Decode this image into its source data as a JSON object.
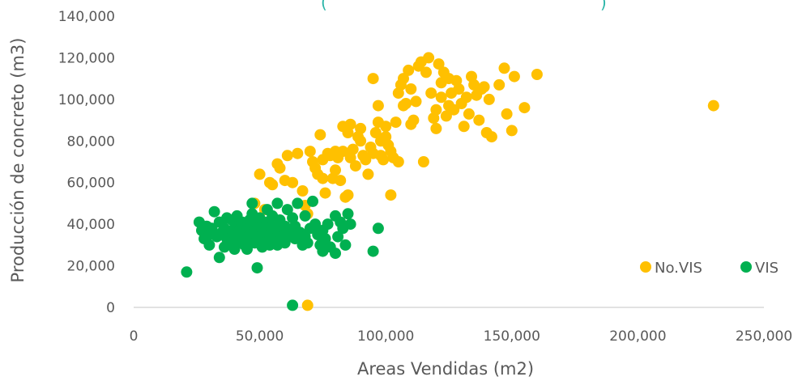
{
  "chart_data": {
    "type": "scatter",
    "title": "(",
    "title_suffix": ")",
    "xlabel": "Areas Vendidas (m2)",
    "ylabel": "Producción de concreto (m3)",
    "xlim": [
      0,
      250000
    ],
    "ylim": [
      0,
      140000
    ],
    "x_ticks": [
      "0",
      "50,000",
      "100,000",
      "150,000",
      "200,000",
      "250,000"
    ],
    "y_ticks": [
      "0",
      "20,000",
      "40,000",
      "60,000",
      "80,000",
      "100,000",
      "120,000",
      "140,000"
    ],
    "grid": false,
    "legend_position": "bottom-right",
    "series": [
      {
        "name": "No.VIS",
        "color": "#FFC000",
        "points": [
          [
            69000,
            1000
          ],
          [
            48000,
            50000
          ],
          [
            52000,
            47000
          ],
          [
            50000,
            64000
          ],
          [
            54000,
            60000
          ],
          [
            55000,
            59000
          ],
          [
            57000,
            69000
          ],
          [
            58000,
            67000
          ],
          [
            60000,
            61000
          ],
          [
            61000,
            73000
          ],
          [
            63000,
            60000
          ],
          [
            65000,
            74000
          ],
          [
            67000,
            56000
          ],
          [
            68000,
            49000
          ],
          [
            69000,
            45000
          ],
          [
            70000,
            75000
          ],
          [
            71000,
            70000
          ],
          [
            72000,
            67000
          ],
          [
            73000,
            64000
          ],
          [
            74000,
            83000
          ],
          [
            75000,
            71000
          ],
          [
            75000,
            62000
          ],
          [
            76000,
            55000
          ],
          [
            77000,
            74000
          ],
          [
            78000,
            73000
          ],
          [
            79000,
            62000
          ],
          [
            80000,
            66000
          ],
          [
            80000,
            75000
          ],
          [
            81000,
            72000
          ],
          [
            82000,
            61000
          ],
          [
            83000,
            87000
          ],
          [
            83000,
            75000
          ],
          [
            84000,
            53000
          ],
          [
            85000,
            54000
          ],
          [
            85000,
            84000
          ],
          [
            86000,
            88000
          ],
          [
            86000,
            72000
          ],
          [
            87000,
            76000
          ],
          [
            88000,
            68000
          ],
          [
            89000,
            82000
          ],
          [
            90000,
            86000
          ],
          [
            90000,
            80000
          ],
          [
            91000,
            73000
          ],
          [
            92000,
            71000
          ],
          [
            93000,
            64000
          ],
          [
            94000,
            77000
          ],
          [
            95000,
            74000
          ],
          [
            95000,
            110000
          ],
          [
            96000,
            84000
          ],
          [
            97000,
            97000
          ],
          [
            97000,
            89000
          ],
          [
            98000,
            80000
          ],
          [
            98000,
            73000
          ],
          [
            99000,
            71000
          ],
          [
            100000,
            82000
          ],
          [
            100000,
            87000
          ],
          [
            101000,
            78000
          ],
          [
            102000,
            75000
          ],
          [
            102000,
            54000
          ],
          [
            103000,
            72000
          ],
          [
            104000,
            89000
          ],
          [
            105000,
            70000
          ],
          [
            105000,
            103000
          ],
          [
            106000,
            107000
          ],
          [
            107000,
            110000
          ],
          [
            107000,
            97000
          ],
          [
            108000,
            98000
          ],
          [
            109000,
            114000
          ],
          [
            110000,
            105000
          ],
          [
            110000,
            88000
          ],
          [
            111000,
            90000
          ],
          [
            112000,
            99000
          ],
          [
            113000,
            116000
          ],
          [
            114000,
            118000
          ],
          [
            115000,
            70000
          ],
          [
            116000,
            113000
          ],
          [
            117000,
            120000
          ],
          [
            118000,
            103000
          ],
          [
            119000,
            91000
          ],
          [
            120000,
            95000
          ],
          [
            120000,
            86000
          ],
          [
            121000,
            117000
          ],
          [
            122000,
            108000
          ],
          [
            122000,
            101000
          ],
          [
            123000,
            113000
          ],
          [
            124000,
            92000
          ],
          [
            125000,
            110000
          ],
          [
            125000,
            97000
          ],
          [
            126000,
            103000
          ],
          [
            127000,
            95000
          ],
          [
            128000,
            109000
          ],
          [
            129000,
            105000
          ],
          [
            130000,
            98000
          ],
          [
            131000,
            87000
          ],
          [
            132000,
            101000
          ],
          [
            133000,
            93000
          ],
          [
            134000,
            111000
          ],
          [
            135000,
            107000
          ],
          [
            136000,
            102000
          ],
          [
            137000,
            90000
          ],
          [
            138000,
            105000
          ],
          [
            139000,
            106000
          ],
          [
            140000,
            84000
          ],
          [
            141000,
            100000
          ],
          [
            142000,
            82000
          ],
          [
            145000,
            107000
          ],
          [
            147000,
            115000
          ],
          [
            148000,
            93000
          ],
          [
            150000,
            85000
          ],
          [
            151000,
            111000
          ],
          [
            155000,
            96000
          ],
          [
            160000,
            112000
          ],
          [
            230000,
            97000
          ]
        ]
      },
      {
        "name": "VIS",
        "color": "#00B050",
        "points": [
          [
            21000,
            17000
          ],
          [
            26000,
            41000
          ],
          [
            27000,
            37000
          ],
          [
            28000,
            33000
          ],
          [
            29000,
            39000
          ],
          [
            30000,
            30000
          ],
          [
            30000,
            35000
          ],
          [
            31000,
            38000
          ],
          [
            32000,
            46000
          ],
          [
            33000,
            34000
          ],
          [
            34000,
            24000
          ],
          [
            34000,
            41000
          ],
          [
            35000,
            36000
          ],
          [
            36000,
            29000
          ],
          [
            36000,
            38000
          ],
          [
            37000,
            43000
          ],
          [
            37000,
            33000
          ],
          [
            38000,
            31000
          ],
          [
            39000,
            37000
          ],
          [
            39000,
            42000
          ],
          [
            40000,
            35000
          ],
          [
            40000,
            28000
          ],
          [
            41000,
            39000
          ],
          [
            41000,
            44000
          ],
          [
            42000,
            32000
          ],
          [
            42000,
            37000
          ],
          [
            43000,
            34000
          ],
          [
            43000,
            41000
          ],
          [
            44000,
            30000
          ],
          [
            44000,
            36000
          ],
          [
            45000,
            39000
          ],
          [
            45000,
            28000
          ],
          [
            46000,
            42000
          ],
          [
            46000,
            35000
          ],
          [
            47000,
            33000
          ],
          [
            47000,
            45000
          ],
          [
            47000,
            50000
          ],
          [
            48000,
            31000
          ],
          [
            48000,
            37000
          ],
          [
            49000,
            40000
          ],
          [
            49000,
            19000
          ],
          [
            50000,
            34000
          ],
          [
            50000,
            43000
          ],
          [
            51000,
            29000
          ],
          [
            51000,
            38000
          ],
          [
            52000,
            36000
          ],
          [
            52000,
            31000
          ],
          [
            53000,
            41000
          ],
          [
            53000,
            47000
          ],
          [
            54000,
            35000
          ],
          [
            54000,
            30000
          ],
          [
            55000,
            39000
          ],
          [
            55000,
            44000
          ],
          [
            56000,
            33000
          ],
          [
            56000,
            38000
          ],
          [
            57000,
            50000
          ],
          [
            57000,
            30000
          ],
          [
            58000,
            36000
          ],
          [
            58000,
            42000
          ],
          [
            59000,
            34000
          ],
          [
            60000,
            39000
          ],
          [
            60000,
            31000
          ],
          [
            61000,
            47000
          ],
          [
            61000,
            37000
          ],
          [
            62000,
            35000
          ],
          [
            63000,
            43000
          ],
          [
            63000,
            1000
          ],
          [
            64000,
            33000
          ],
          [
            64000,
            39000
          ],
          [
            65000,
            50000
          ],
          [
            66000,
            36000
          ],
          [
            67000,
            30000
          ],
          [
            68000,
            44000
          ],
          [
            68000,
            34000
          ],
          [
            69000,
            31000
          ],
          [
            70000,
            38000
          ],
          [
            71000,
            51000
          ],
          [
            72000,
            40000
          ],
          [
            73000,
            35000
          ],
          [
            74000,
            30000
          ],
          [
            75000,
            27000
          ],
          [
            75000,
            37000
          ],
          [
            76000,
            33000
          ],
          [
            77000,
            40000
          ],
          [
            78000,
            29000
          ],
          [
            80000,
            44000
          ],
          [
            80000,
            26000
          ],
          [
            81000,
            34000
          ],
          [
            82000,
            41000
          ],
          [
            83000,
            38000
          ],
          [
            84000,
            30000
          ],
          [
            85000,
            45000
          ],
          [
            86000,
            40000
          ],
          [
            95000,
            27000
          ],
          [
            97000,
            38000
          ]
        ]
      }
    ]
  }
}
